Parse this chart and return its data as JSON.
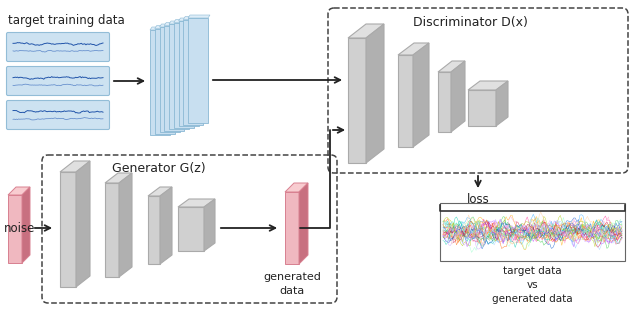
{
  "bg_color": "#ffffff",
  "text_color": "#222222",
  "blue_sheet_face": "#c8dff0",
  "blue_sheet_edge": "#8ab8d4",
  "blue_sheet_line": "#7aaac8",
  "blue_panel_face": "#c8dff0",
  "blue_panel_edge": "#8ab8d4",
  "pink_face": "#f0b8c0",
  "pink_edge": "#d88090",
  "pink_side": "#c87080",
  "gray_face": "#d0d0d0",
  "gray_edge": "#aaaaaa",
  "gray_side": "#b0b0b0",
  "gray_top": "#e0e0e0",
  "arrow_color": "#222222",
  "dashed_color": "#444444",
  "labels": {
    "target_training": "target training data",
    "discriminator": "Discriminator D(x)",
    "generator": "Generator G(z)",
    "noise": "noise",
    "generated_data": "generated\ndata",
    "loss": "loss",
    "target_vs": "target data\nvs\ngenerated data"
  }
}
